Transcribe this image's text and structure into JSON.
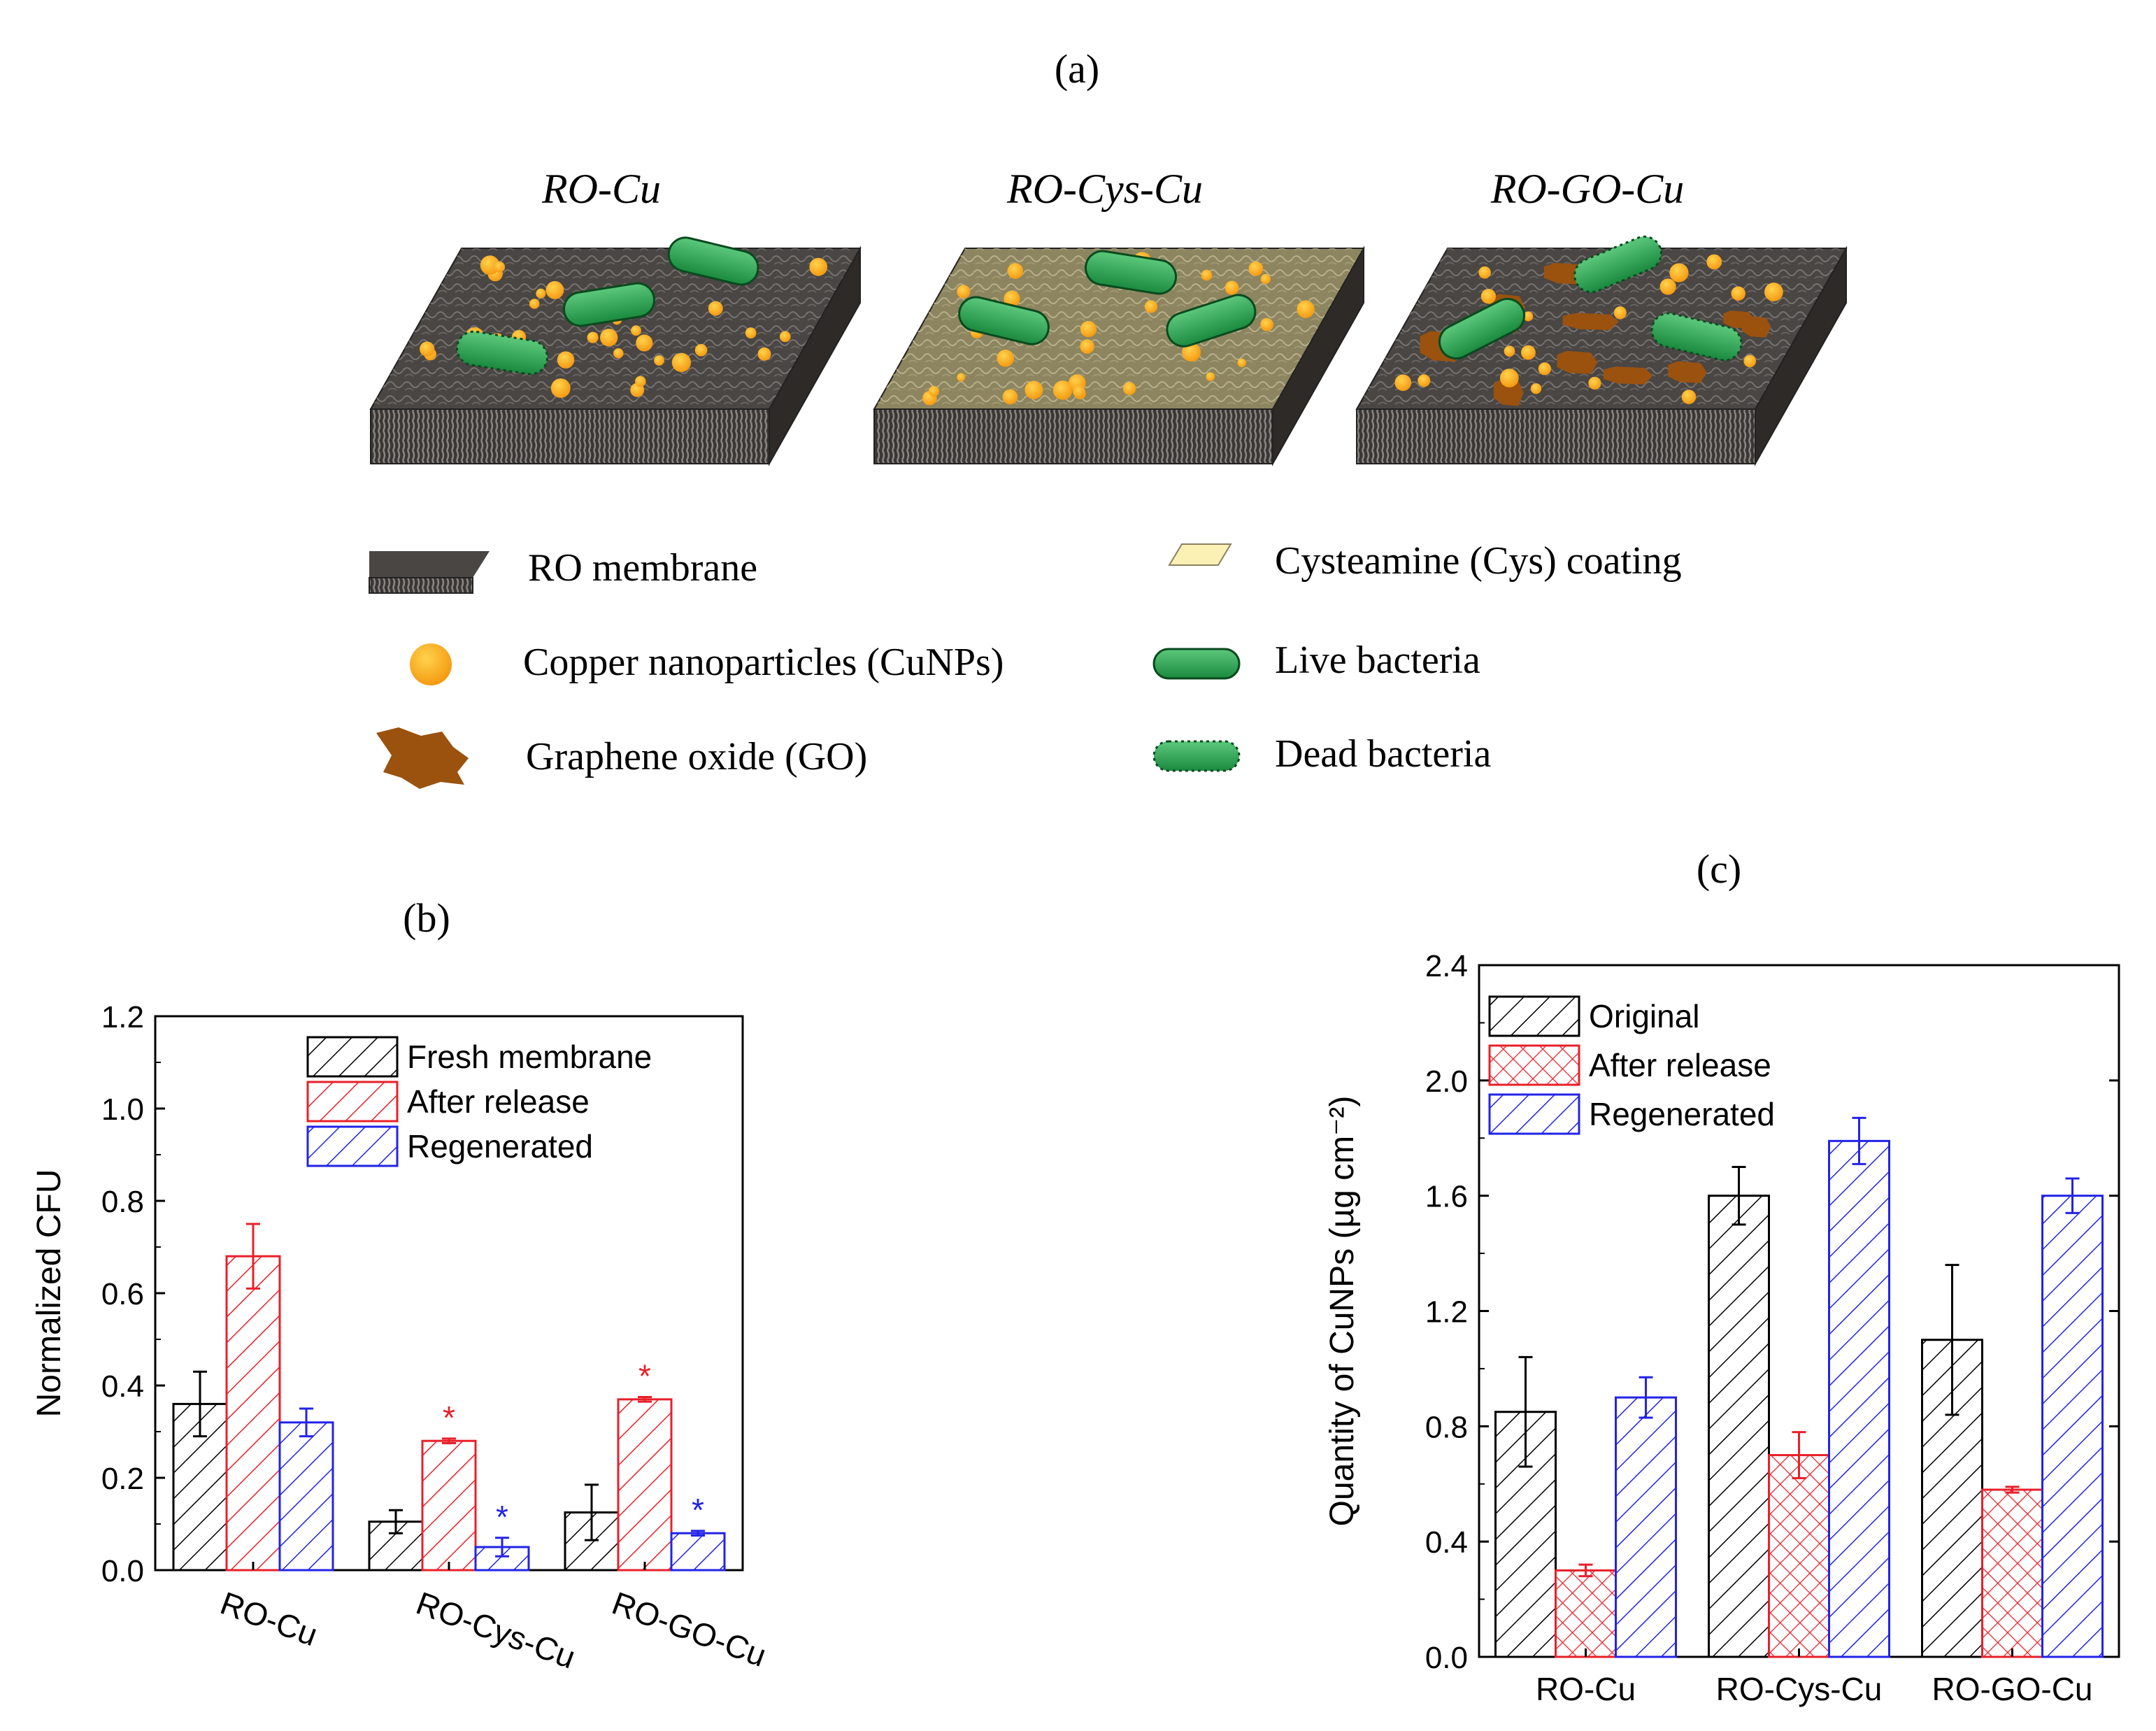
{
  "panel_a": {
    "label": "(a)",
    "schemes": [
      {
        "title": "RO-Cu",
        "surface": "#4a4644",
        "particles": "cu",
        "cys": false,
        "go": false
      },
      {
        "title": "RO-Cys-Cu",
        "surface": "#8c8560",
        "particles": "cu",
        "cys": true,
        "go": false
      },
      {
        "title": "RO-GO-Cu",
        "surface": "#4a4644",
        "particles": "cu",
        "cys": false,
        "go": true
      }
    ],
    "legend": {
      "ro_membrane": "RO membrane",
      "cys_coating": "Cysteamine (Cys) coating",
      "cunps": "Copper nanoparticles (CuNPs)",
      "live_bacteria": "Live bacteria",
      "go": "Graphene oxide (GO)",
      "dead_bacteria": "Dead bacteria"
    },
    "colors": {
      "membrane": "#4a4644",
      "cys": "#fbf1b4",
      "cu_outer": "#f59a12",
      "cu_inner": "#ffd34d",
      "bacteria": "#1f9a4a",
      "go": "#9a520e"
    }
  },
  "chart_data": [
    {
      "panel": "(b)",
      "type": "bar",
      "title": "",
      "xlabel": "",
      "ylabel": "Normalized CFU",
      "ylim": [
        0,
        1.2
      ],
      "yticks": [
        "0.0",
        "0.2",
        "0.4",
        "0.6",
        "0.8",
        "1.0",
        "1.2"
      ],
      "categories": [
        "RO-Cu",
        "RO-Cys-Cu",
        "RO-GO-Cu"
      ],
      "series": [
        {
          "name": "Fresh membrane",
          "color": "#000000",
          "pattern": "hatch",
          "values": [
            0.36,
            0.105,
            0.125
          ],
          "errors": [
            0.07,
            0.025,
            0.06
          ],
          "marks": [
            "",
            "",
            ""
          ]
        },
        {
          "name": "After release",
          "color": "#e8202a",
          "pattern": "hatch",
          "values": [
            0.68,
            0.28,
            0.37
          ],
          "errors": [
            0.07,
            0.005,
            0.005
          ],
          "marks": [
            "",
            "*",
            "*"
          ]
        },
        {
          "name": "Regenerated",
          "color": "#2323e8",
          "pattern": "hatch",
          "values": [
            0.32,
            0.05,
            0.08
          ],
          "errors": [
            0.03,
            0.02,
            0.005
          ],
          "marks": [
            "",
            "*",
            "*"
          ]
        }
      ],
      "legend_position": "top-right"
    },
    {
      "panel": "(c)",
      "type": "bar",
      "title": "",
      "xlabel": "",
      "ylabel": "Quantity of CuNPs (µg cm⁻²)",
      "ylim": [
        0,
        2.4
      ],
      "yticks": [
        "0.0",
        "0.4",
        "0.8",
        "1.2",
        "1.6",
        "2.0",
        "2.4"
      ],
      "categories": [
        "RO-Cu",
        "RO-Cys-Cu",
        "RO-GO-Cu"
      ],
      "series": [
        {
          "name": "Original",
          "color": "#000000",
          "pattern": "hatch",
          "values": [
            0.85,
            1.6,
            1.1
          ],
          "errors": [
            0.19,
            0.1,
            0.26
          ]
        },
        {
          "name": "After release",
          "color": "#e8202a",
          "pattern": "cross",
          "values": [
            0.3,
            0.7,
            0.58
          ],
          "errors": [
            0.02,
            0.08,
            0.01
          ]
        },
        {
          "name": "Regenerated",
          "color": "#2323e8",
          "pattern": "hatch",
          "values": [
            0.9,
            1.79,
            1.6
          ],
          "errors": [
            0.07,
            0.08,
            0.06
          ]
        }
      ],
      "legend_position": "top-left"
    }
  ]
}
